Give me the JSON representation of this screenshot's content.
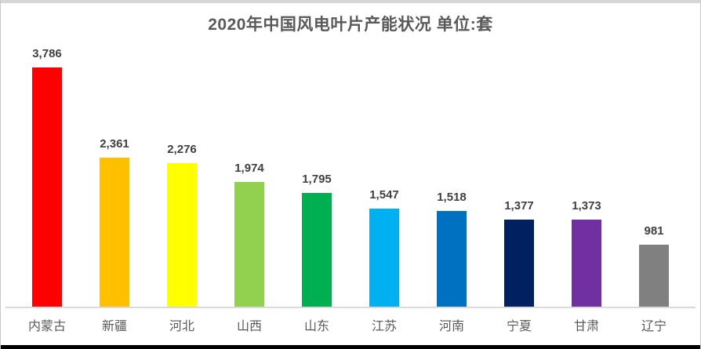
{
  "title": "2020年中国风电叶片产能状况 单位:套",
  "chart_data": {
    "type": "bar",
    "title": "2020年中国风电叶片产能状况 单位:套",
    "unit": "套",
    "categories": [
      "内蒙古",
      "新疆",
      "河北",
      "山西",
      "山东",
      "江苏",
      "河南",
      "宁夏",
      "甘肃",
      "辽宁"
    ],
    "values": [
      3786,
      2361,
      2276,
      1974,
      1795,
      1547,
      1518,
      1377,
      1373,
      981
    ],
    "value_labels": [
      "3,786",
      "2,361",
      "2,276",
      "1,974",
      "1,795",
      "1,547",
      "1,518",
      "1,377",
      "1,373",
      "981"
    ],
    "bar_colors": [
      "#FF0000",
      "#FFC000",
      "#FFFF00",
      "#92D050",
      "#00B050",
      "#00B0F0",
      "#0070C0",
      "#002060",
      "#7030A0",
      "#808080"
    ],
    "xlabel": "",
    "ylabel": "",
    "ylim": [
      0,
      4000
    ],
    "grid": false,
    "legend": false,
    "data_labels": true
  },
  "colors": {
    "title_text": "#595959",
    "value_label_text": "#404040",
    "category_label_text": "#595959",
    "baseline": "#D9D9D9",
    "frame_top_strip": "#D6D6D6",
    "frame_bottom_strip": "#000000",
    "background": "#FFFFFF"
  }
}
